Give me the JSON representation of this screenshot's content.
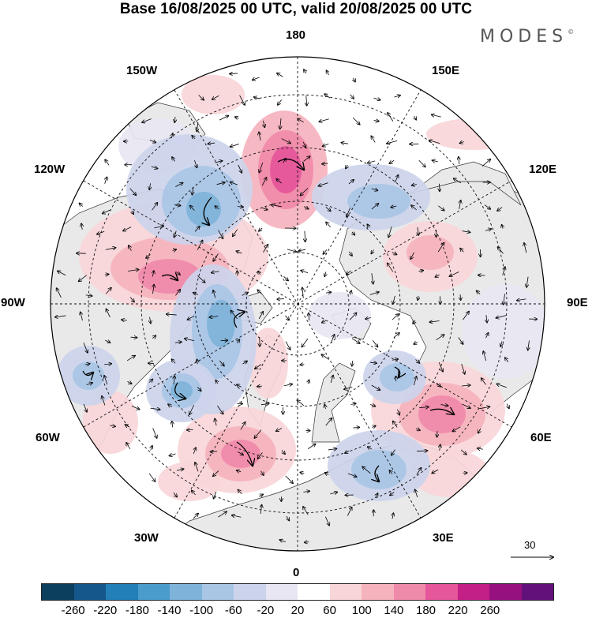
{
  "title": "Base 16/08/2025 00 UTC, valid 20/08/2025 00 UTC",
  "brand": "MODES",
  "brand_mark": "©",
  "longitude_labels": {
    "top": "180",
    "bottom": "0",
    "left": "90W",
    "right": "90E",
    "upper_left_1": "150W",
    "upper_left_2": "120W",
    "upper_right_1": "150E",
    "upper_right_2": "120E",
    "lower_left_1": "60W",
    "lower_left_2": "30W",
    "lower_right_1": "60E",
    "lower_right_2": "30E"
  },
  "vector_scale": {
    "label": "30"
  },
  "colorbar": {
    "colors": [
      "#0c3f5e",
      "#15578a",
      "#237fb8",
      "#4a9ccd",
      "#7fb3da",
      "#a9c6e5",
      "#ccd4ec",
      "#e8e6f2",
      "#ffffff",
      "#f8d6d8",
      "#f5b3be",
      "#f08aaa",
      "#e5569a",
      "#c31f86",
      "#961080",
      "#62107a"
    ],
    "ticks": [
      "-260",
      "-220",
      "-180",
      "-140",
      "-100",
      "-60",
      "-20",
      "20",
      "60",
      "100",
      "140",
      "180",
      "220",
      "260"
    ]
  },
  "anomaly_color_scale": {
    "-140": "#7fb3da",
    "-100": "#a9c6e5",
    "-60": "#ccd4ec",
    "-20": "#e8e6f2",
    "60": "#f8d6d8",
    "100": "#f5b3be",
    "140": "#f08aaa",
    "180": "#e5569a"
  },
  "anomaly_features": [
    {
      "id": "kara-sea-high",
      "value": 140
    },
    {
      "id": "pacific-arctic-high",
      "value": 180
    },
    {
      "id": "canada-high",
      "value": 140
    },
    {
      "id": "north-atlantic-high",
      "value": 140
    },
    {
      "id": "barents-low",
      "value": -100
    },
    {
      "id": "greenland-low",
      "value": -140
    },
    {
      "id": "labrador-low",
      "value": -140
    },
    {
      "id": "alaska-low",
      "value": -140
    },
    {
      "id": "east-siberia-low",
      "value": -100
    },
    {
      "id": "europe-low",
      "value": -100
    },
    {
      "id": "central-siberia-high",
      "value": 100
    },
    {
      "id": "hudson-low",
      "value": -100
    }
  ]
}
